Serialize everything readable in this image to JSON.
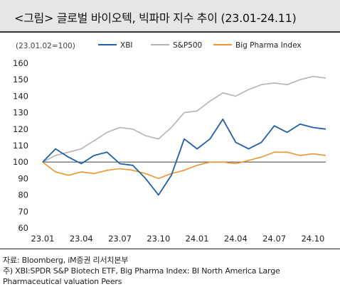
{
  "header": {
    "title": "<그림> 글로벌 바이오텍, 빅파마 지수 추이 (23.01-24.11)"
  },
  "footer": {
    "source": "자료: Bloomberg, iM증권 리서치본부",
    "note_line1": "주) XBI:SPDR S&P Biotech ETF, Big Pharma Index: BI North America Large",
    "note_line2": "Pharmaceutical valuation Peers"
  },
  "chart_data": {
    "type": "line",
    "unit_note": "(23.01.02=100)",
    "title": "",
    "xlabel": "",
    "ylabel": "",
    "xlim": [
      "23.01",
      "24.11"
    ],
    "ylim": [
      60,
      160
    ],
    "y_ticks": [
      60,
      70,
      80,
      90,
      100,
      110,
      120,
      130,
      140,
      150,
      160
    ],
    "x_ticks": [
      "23.01",
      "23.04",
      "23.07",
      "23.10",
      "24.01",
      "24.04",
      "24.07",
      "24.10"
    ],
    "baseline": 100,
    "grid": false,
    "legend_position": "top",
    "x": [
      "23.01",
      "23.02",
      "23.03",
      "23.04",
      "23.05",
      "23.06",
      "23.07",
      "23.08",
      "23.09",
      "23.10",
      "23.11",
      "23.12",
      "24.01",
      "24.02",
      "24.03",
      "24.04",
      "24.05",
      "24.06",
      "24.07",
      "24.08",
      "24.09",
      "24.10",
      "24.11"
    ],
    "series": [
      {
        "name": "XBI",
        "color": "#1f5fa8",
        "values": [
          100,
          108,
          103,
          99,
          104,
          106,
          99,
          98,
          90,
          80,
          92,
          114,
          108,
          114,
          126,
          112,
          108,
          112,
          122,
          118,
          123,
          121,
          120
        ]
      },
      {
        "name": "S&P500",
        "color": "#b3b3b3",
        "values": [
          100,
          104,
          106,
          108,
          113,
          118,
          121,
          120,
          116,
          114,
          121,
          130,
          131,
          137,
          142,
          140,
          144,
          147,
          148,
          147,
          150,
          152,
          151
        ]
      },
      {
        "name": "Big Pharma Index",
        "color": "#f0922e",
        "values": [
          100,
          94,
          92,
          94,
          93,
          95,
          96,
          95,
          93,
          90,
          93,
          95,
          98,
          100,
          100,
          99,
          101,
          103,
          106,
          106,
          104,
          105,
          104
        ]
      }
    ]
  }
}
